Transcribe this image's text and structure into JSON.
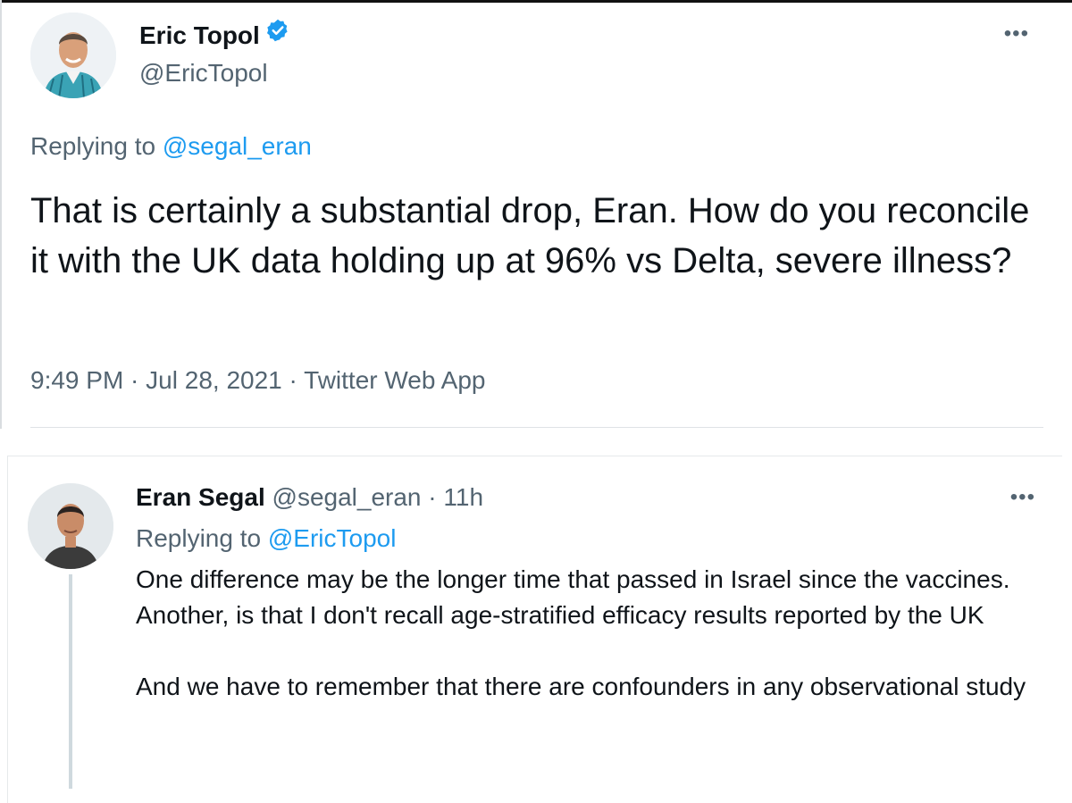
{
  "tweet": {
    "author_name": "Eric Topol",
    "author_handle": "@EricTopol",
    "replying_prefix": "Replying to ",
    "replying_to": "@segal_eran",
    "text": "That is certainly a substantial drop, Eran. How do you reconcile it with the UK data holding up at 96% vs Delta, severe illness?",
    "time": "9:49 PM",
    "date": "Jul 28, 2021",
    "source": "Twitter Web App",
    "separator": " · ",
    "more_label": "•••",
    "verified": true
  },
  "reply": {
    "author_name": "Eran Segal",
    "author_handle": "@segal_eran",
    "age": "11h",
    "separator": " · ",
    "replying_prefix": "Replying to ",
    "replying_to": "@EricTopol",
    "paragraphs": [
      "One difference may be the longer time that passed in Israel since the vaccines. Another, is that I don't recall age-stratified efficacy results reported by the UK",
      "And we have to remember that there are confounders in any observational study"
    ],
    "more_label": "•••"
  },
  "colors": {
    "link": "#1d9bf0",
    "secondary_text": "#536471",
    "primary_text": "#0f1419",
    "verified_badge": "#1d9bf0",
    "thread_line": "#cfd9de"
  },
  "icons": {
    "verified": "verified-badge-icon",
    "more": "more-options-icon"
  }
}
